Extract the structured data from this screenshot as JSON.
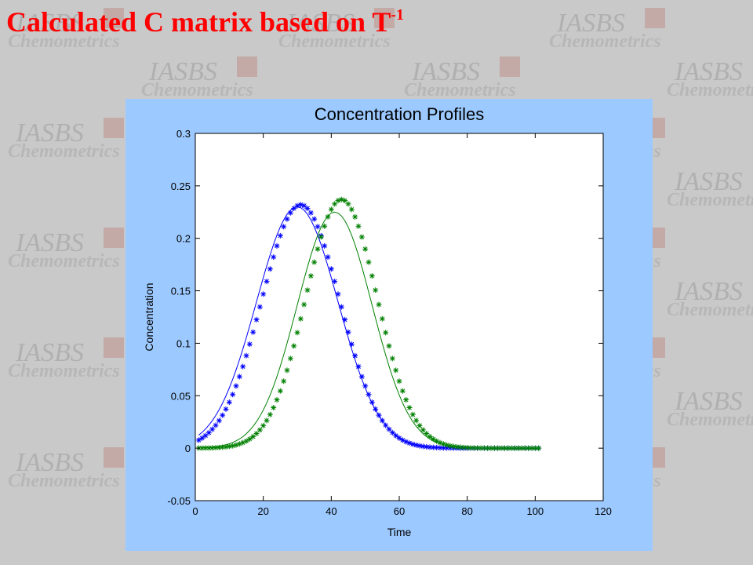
{
  "slide": {
    "title_text": "Calculated C matrix based on T",
    "title_superscript": "-1"
  },
  "watermark": {
    "logo": "IASBS",
    "subtitle": "Chemometrics"
  },
  "colors": {
    "background": "#c9c9c9",
    "figure_background": "#9cc9ff",
    "title": "#ff0000",
    "series_blue": "#0000ff",
    "series_green": "#008000"
  },
  "chart_data": {
    "type": "line",
    "title": "Concentration Profiles",
    "xlabel": "Time",
    "ylabel": "Concentration",
    "xlim": [
      0,
      120
    ],
    "ylim": [
      -0.05,
      0.3
    ],
    "xticks": [
      0,
      20,
      40,
      60,
      80,
      100,
      120
    ],
    "yticks": [
      -0.05,
      0,
      0.05,
      0.1,
      0.15,
      0.2,
      0.25,
      0.3
    ],
    "grid": false,
    "legend": "none",
    "x": [
      1,
      101
    ],
    "series": [
      {
        "style": "line",
        "color": "#0000ff",
        "peak_x": 30,
        "peak_y": 0.23,
        "width": 12,
        "baseline": 0.0
      },
      {
        "style": "line",
        "color": "#008000",
        "peak_x": 41,
        "peak_y": 0.225,
        "width": 11,
        "baseline": 0.0
      },
      {
        "style": "markers",
        "marker": "*",
        "color": "#0000ff",
        "peak_x": 31,
        "peak_y": 0.232,
        "width": 11.5,
        "baseline": 0.0
      },
      {
        "style": "markers",
        "marker": "*",
        "color": "#008000",
        "peak_x": 43,
        "peak_y": 0.237,
        "width": 10.5,
        "baseline": 0.0
      }
    ]
  }
}
